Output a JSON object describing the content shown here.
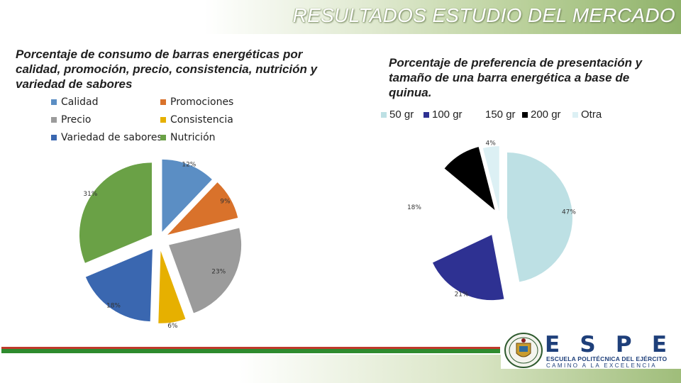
{
  "page": {
    "title": "RESULTADOS ESTUDIO DEL MERCADO"
  },
  "colors": {
    "header_gradient": "#8fb26a",
    "footer_red": "#c0392b",
    "footer_green": "#2e8b2e",
    "logo_blue": "#1e3f7a"
  },
  "logo": {
    "letters": [
      "E",
      "S",
      "P",
      "E"
    ],
    "line1": "ESCUELA POLITÉCNICA DEL EJÉRCITO",
    "line2": "CAMINO A LA EXCELENCIA",
    "seal_icon": "espe-seal-icon"
  },
  "chart_data": [
    {
      "type": "pie",
      "exploded": true,
      "title": "Porcentaje de consumo de barras energéticas por calidad, promoción, precio, consistencia, nutrición y variedad de sabores",
      "legend_placement": "top",
      "slices": [
        {
          "label": "Calidad",
          "value": 12,
          "display": "12%",
          "color": "#5b8ec4"
        },
        {
          "label": "Promociones",
          "value": 9,
          "display": "9%",
          "color": "#d9722b"
        },
        {
          "label": "Precio",
          "value": 23,
          "display": "23%",
          "color": "#9b9b9b"
        },
        {
          "label": "Consistencia",
          "value": 6,
          "display": "6%",
          "color": "#e6b000"
        },
        {
          "label": "Variedad de sabores",
          "value": 18,
          "display": "18%",
          "color": "#3a67b0"
        },
        {
          "label": "Nutrición",
          "value": 31,
          "display": "31%",
          "color": "#6aa146"
        }
      ]
    },
    {
      "type": "pie",
      "exploded": true,
      "title": "Porcentaje de preferencia de presentación y tamaño de una barra energética a base de quinua.",
      "legend_placement": "top",
      "slices": [
        {
          "label": "50 gr",
          "value": 47,
          "display": "47%",
          "color": "#bde0e4"
        },
        {
          "label": "100 gr",
          "value": 21,
          "display": "21%",
          "color": "#2e3192"
        },
        {
          "label": "150 gr",
          "value": 18,
          "display": "18%",
          "color": "#ffffff"
        },
        {
          "label": "200 gr",
          "value": 10,
          "display": "",
          "color": "#000000"
        },
        {
          "label": "Otra",
          "value": 4,
          "display": "4%",
          "color": "#dcf0f4"
        }
      ]
    }
  ]
}
